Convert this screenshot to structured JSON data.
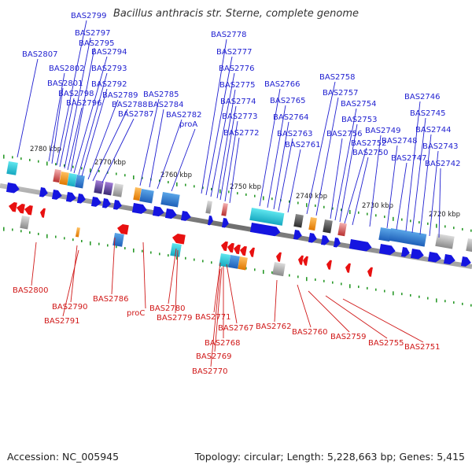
{
  "title": "Bacillus anthracis str. Sterne, complete genome",
  "footer": {
    "accession": "Accession: NC_005945",
    "summary": "Topology: circular; Length: 5,228,663 bp; Genes: 5,415"
  },
  "colors": {
    "forward_gene": "#1515e0",
    "reverse_gene": "#e81010",
    "top_label": "#1f1fd0",
    "bottom_label": "#d01818",
    "scale_dot": "#2a9a2a"
  },
  "kbp_ticks": [
    "2780 kbp",
    "2770 kbp",
    "2760 kbp",
    "2750 kbp",
    "2740 kbp",
    "2730 kbp",
    "2720 kbp"
  ],
  "forward_genes": [
    "BAS2807",
    "BAS2802",
    "BAS2801",
    "BAS2799",
    "BAS2798",
    "BAS2797",
    "BAS2796",
    "BAS2795",
    "BAS2794",
    "BAS2793",
    "BAS2792",
    "BAS2789",
    "BAS2788",
    "BAS2787",
    "BAS2785",
    "BAS2784",
    "BAS2782",
    "proA",
    "BAS2778",
    "BAS2777",
    "BAS2776",
    "BAS2775",
    "BAS2774",
    "BAS2773",
    "BAS2772",
    "BAS2766",
    "BAS2765",
    "BAS2764",
    "BAS2763",
    "BAS2761",
    "BAS2758",
    "BAS2757",
    "BAS2756",
    "BAS2754",
    "BAS2753",
    "BAS2752",
    "BAS2750",
    "BAS2749",
    "BAS2748",
    "BAS2747",
    "BAS2746",
    "BAS2745",
    "BAS2744",
    "BAS2743",
    "BAS2742"
  ],
  "reverse_genes": [
    "BAS2800",
    "BAS2790",
    "BAS2791",
    "BAS2786",
    "proC",
    "BAS2780",
    "BAS2779",
    "BAS2771",
    "BAS2767",
    "BAS2768",
    "BAS2769",
    "BAS2770",
    "BAS2762",
    "BAS2760",
    "BAS2759",
    "BAS2755",
    "BAS2751"
  ]
}
